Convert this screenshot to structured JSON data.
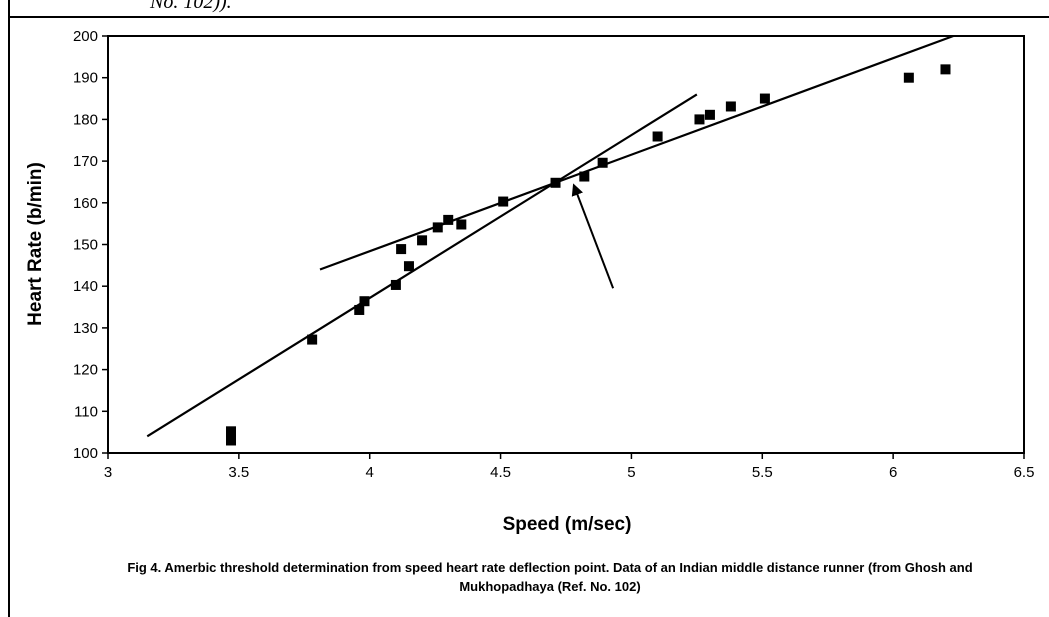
{
  "page": {
    "top_fragment": "No. 102)).",
    "caption": "Fig 4. Amerbic threshold determination from speed heart rate deflection point. Data of an Indian middle distance runner (from Ghosh and Mukhopadhaya (Ref. No. 102)"
  },
  "chart_data": {
    "type": "scatter",
    "title": "",
    "xlabel": "Speed (m/sec)",
    "ylabel": "Heart Rate (b/min)",
    "xlim": [
      3,
      6.5
    ],
    "ylim": [
      100,
      200
    ],
    "xticks": [
      "3",
      "3.5",
      "4",
      "4.5",
      "5",
      "5.5",
      "6",
      "6.5"
    ],
    "yticks": [
      "100",
      "110",
      "120",
      "130",
      "140",
      "150",
      "160",
      "170",
      "180",
      "190",
      "200"
    ],
    "marker": "square",
    "marker_color": "#000000",
    "grid": false,
    "legend": "none",
    "points": [
      {
        "x": 3.47,
        "y": 103
      },
      {
        "x": 3.47,
        "y": 105.2
      },
      {
        "x": 3.78,
        "y": 127.2
      },
      {
        "x": 3.96,
        "y": 134.3
      },
      {
        "x": 3.98,
        "y": 136.4
      },
      {
        "x": 4.1,
        "y": 140.3
      },
      {
        "x": 4.12,
        "y": 148.9
      },
      {
        "x": 4.15,
        "y": 144.8
      },
      {
        "x": 4.2,
        "y": 151
      },
      {
        "x": 4.26,
        "y": 154.1
      },
      {
        "x": 4.3,
        "y": 155.9
      },
      {
        "x": 4.35,
        "y": 154.8
      },
      {
        "x": 4.51,
        "y": 160.3
      },
      {
        "x": 4.71,
        "y": 164.8
      },
      {
        "x": 4.82,
        "y": 166.3
      },
      {
        "x": 4.89,
        "y": 169.6
      },
      {
        "x": 5.1,
        "y": 175.9
      },
      {
        "x": 5.26,
        "y": 180
      },
      {
        "x": 5.3,
        "y": 181.1
      },
      {
        "x": 5.38,
        "y": 183.1
      },
      {
        "x": 5.51,
        "y": 185
      },
      {
        "x": 6.06,
        "y": 190
      },
      {
        "x": 6.2,
        "y": 192
      }
    ],
    "fit_lines": [
      {
        "from": {
          "x": 3.15,
          "y": 104
        },
        "to": {
          "x": 5.25,
          "y": 186
        }
      },
      {
        "from": {
          "x": 3.81,
          "y": 144
        },
        "to": {
          "x": 6.23,
          "y": 200
        }
      }
    ],
    "annotation_arrow": {
      "from": {
        "x": 4.93,
        "y": 139.5
      },
      "to": {
        "x": 4.78,
        "y": 164.2
      }
    }
  }
}
